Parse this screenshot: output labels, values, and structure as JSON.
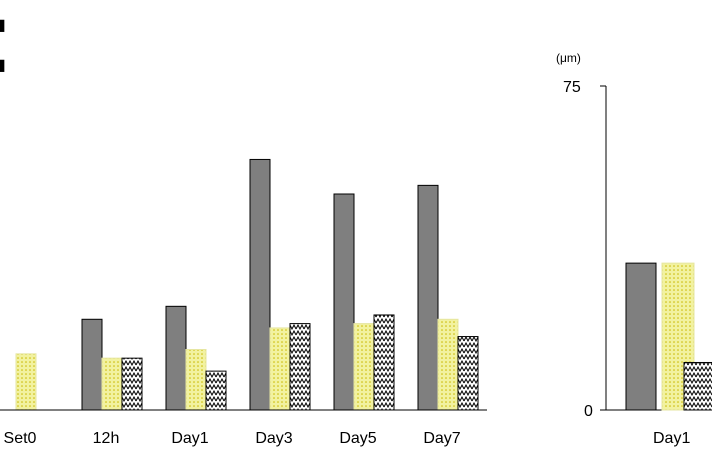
{
  "chart_data": [
    {
      "type": "bar",
      "categories": [
        "Set0",
        "12h",
        "Day1",
        "Day3",
        "Day5",
        "Day7"
      ],
      "legend_markers": [
        "▮",
        "▮"
      ],
      "series": [
        {
          "color": "#7f7f7f",
          "pattern": "solid-grey",
          "values": [
            null,
            21,
            24,
            58,
            50,
            52
          ]
        },
        {
          "color": "#f2f2a0",
          "pattern": "yellow-dot",
          "values": [
            13,
            12,
            14,
            19,
            20,
            21
          ]
        },
        {
          "color": "#ffffff",
          "pattern": "zigzag",
          "values": [
            null,
            12,
            9,
            20,
            22,
            17
          ]
        }
      ],
      "title": "",
      "xlabel": "",
      "ylabel": "",
      "ylim": [
        0,
        75
      ]
    },
    {
      "type": "bar",
      "categories": [
        "Day1"
      ],
      "series": [
        {
          "color": "#7f7f7f",
          "pattern": "solid-grey",
          "values": [
            34
          ]
        },
        {
          "color": "#f2f2a0",
          "pattern": "yellow-dot",
          "values": [
            34
          ]
        },
        {
          "color": "#ffffff",
          "pattern": "zigzag",
          "values": [
            11
          ]
        }
      ],
      "y_unit": "(μm)",
      "y_ticks": [
        "0",
        "75"
      ],
      "title": "",
      "xlabel": "",
      "ylabel": "",
      "ylim": [
        0,
        75
      ]
    }
  ]
}
